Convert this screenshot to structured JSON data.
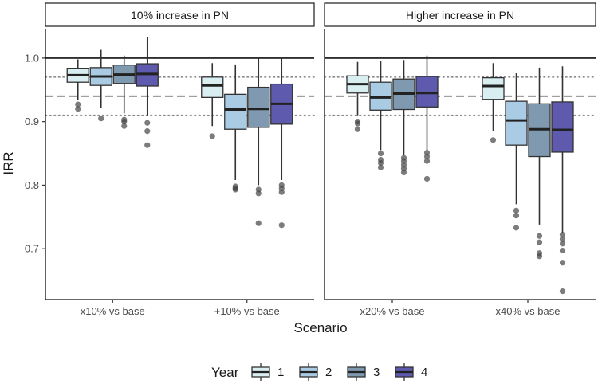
{
  "chart_data": {
    "type": "boxplot",
    "ylabel": "IRR",
    "xlabel": "Scenario",
    "ylim": [
      0.62,
      1.045
    ],
    "yticks": [
      0.7,
      0.8,
      0.9,
      1.0
    ],
    "ytick_labels": [
      "0.7",
      "0.8",
      "0.9",
      "1.0"
    ],
    "reference_lines": [
      {
        "y": 1.0,
        "style": "solid"
      },
      {
        "y": 0.97,
        "style": "dotted"
      },
      {
        "y": 0.94,
        "style": "dashed"
      },
      {
        "y": 0.91,
        "style": "dotted"
      }
    ],
    "legend": {
      "title": "Year",
      "position": "bottom",
      "entries": [
        {
          "label": "1",
          "color": "#d8eef1"
        },
        {
          "label": "2",
          "color": "#a9cbe4"
        },
        {
          "label": "3",
          "color": "#7f99b0"
        },
        {
          "label": "4",
          "color": "#5e5aae"
        }
      ]
    },
    "panels": [
      {
        "title": "10% increase in PN",
        "categories": [
          "x10% vs base",
          "+10% vs base"
        ],
        "boxes": [
          [
            {
              "year": "1",
              "whisker_low": 0.934,
              "q1": 0.962,
              "median": 0.973,
              "q3": 0.984,
              "whisker_high": 0.998,
              "outliers": [
                0.927,
                0.92
              ]
            },
            {
              "year": "2",
              "whisker_low": 0.922,
              "q1": 0.957,
              "median": 0.971,
              "q3": 0.985,
              "whisker_high": 1.013,
              "outliers": [
                0.905
              ]
            },
            {
              "year": "3",
              "whisker_low": 0.913,
              "q1": 0.96,
              "median": 0.974,
              "q3": 0.989,
              "whisker_high": 1.004,
              "outliers": [
                0.903,
                0.9,
                0.893
              ]
            },
            {
              "year": "4",
              "whisker_low": 0.91,
              "q1": 0.956,
              "median": 0.975,
              "q3": 0.991,
              "whisker_high": 1.033,
              "outliers": [
                0.898,
                0.885,
                0.863
              ]
            }
          ],
          [
            {
              "year": "1",
              "whisker_low": 0.893,
              "q1": 0.938,
              "median": 0.957,
              "q3": 0.97,
              "whisker_high": 0.992,
              "outliers": [
                0.877
              ]
            },
            {
              "year": "2",
              "whisker_low": 0.808,
              "q1": 0.888,
              "median": 0.919,
              "q3": 0.943,
              "whisker_high": 0.99,
              "outliers": [
                0.798,
                0.795,
                0.793
              ]
            },
            {
              "year": "3",
              "whisker_low": 0.8,
              "q1": 0.891,
              "median": 0.92,
              "q3": 0.954,
              "whisker_high": 1.0,
              "outliers": [
                0.793,
                0.787,
                0.74
              ]
            },
            {
              "year": "4",
              "whisker_low": 0.808,
              "q1": 0.896,
              "median": 0.928,
              "q3": 0.959,
              "whisker_high": 1.001,
              "outliers": [
                0.8,
                0.795,
                0.789,
                0.737
              ]
            }
          ]
        ]
      },
      {
        "title": "Higher increase in PN",
        "categories": [
          "x20% vs base",
          "x40% vs base"
        ],
        "boxes": [
          [
            {
              "year": "1",
              "whisker_low": 0.91,
              "q1": 0.945,
              "median": 0.959,
              "q3": 0.972,
              "whisker_high": 0.994,
              "outliers": [
                0.9,
                0.897,
                0.888
              ]
            },
            {
              "year": "2",
              "whisker_low": 0.855,
              "q1": 0.918,
              "median": 0.938,
              "q3": 0.962,
              "whisker_high": 0.995,
              "outliers": [
                0.85,
                0.84,
                0.835,
                0.828
              ]
            },
            {
              "year": "3",
              "whisker_low": 0.848,
              "q1": 0.919,
              "median": 0.944,
              "q3": 0.967,
              "whisker_high": 0.997,
              "outliers": [
                0.843,
                0.838,
                0.832,
                0.826,
                0.82
              ]
            },
            {
              "year": "4",
              "whisker_low": 0.855,
              "q1": 0.923,
              "median": 0.945,
              "q3": 0.971,
              "whisker_high": 1.004,
              "outliers": [
                0.851,
                0.845,
                0.838,
                0.81
              ]
            }
          ],
          [
            {
              "year": "1",
              "whisker_low": 0.885,
              "q1": 0.935,
              "median": 0.956,
              "q3": 0.969,
              "whisker_high": 0.992,
              "outliers": [
                0.871
              ]
            },
            {
              "year": "2",
              "whisker_low": 0.77,
              "q1": 0.863,
              "median": 0.902,
              "q3": 0.932,
              "whisker_high": 0.976,
              "outliers": [
                0.76,
                0.752,
                0.733
              ]
            },
            {
              "year": "3",
              "whisker_low": 0.738,
              "q1": 0.845,
              "median": 0.888,
              "q3": 0.928,
              "whisker_high": 0.985,
              "outliers": [
                0.72,
                0.71,
                0.693,
                0.688
              ]
            },
            {
              "year": "4",
              "whisker_low": 0.725,
              "q1": 0.852,
              "median": 0.887,
              "q3": 0.931,
              "whisker_high": 0.987,
              "outliers": [
                0.722,
                0.715,
                0.708,
                0.697,
                0.678,
                0.633
              ]
            }
          ]
        ]
      }
    ]
  }
}
